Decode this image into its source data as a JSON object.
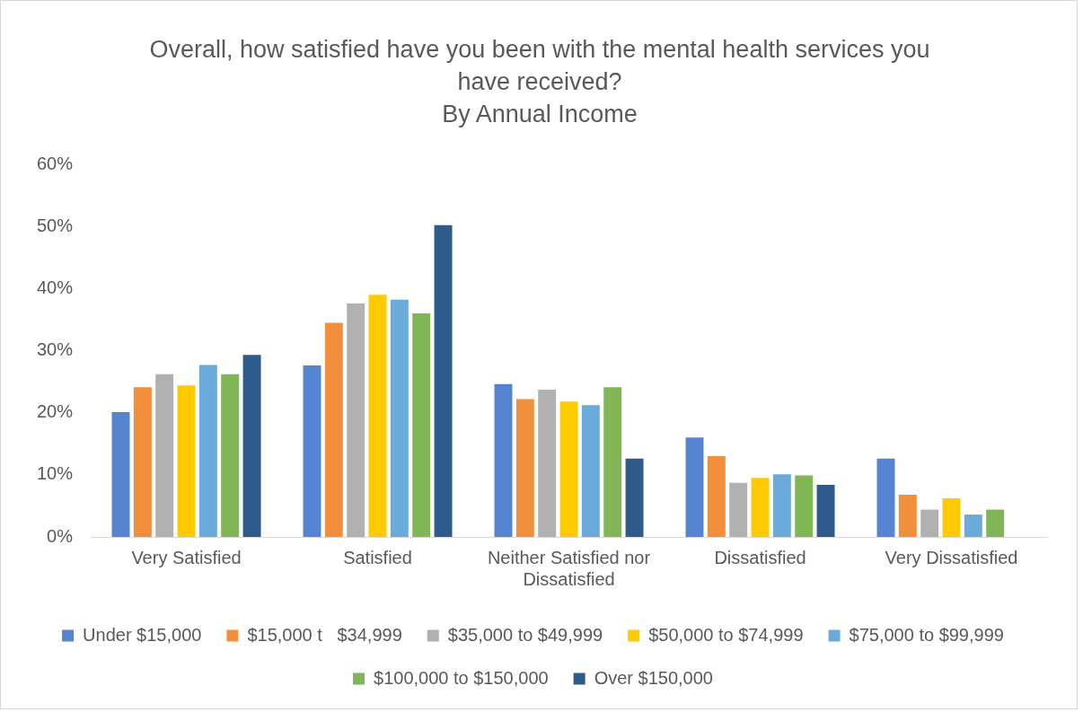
{
  "chart_data": {
    "type": "bar",
    "title": "Overall, how satisfied have you been with the mental health services you have received?",
    "subtitle": "By Annual Income",
    "categories": [
      "Very Satisfied",
      "Satisfied",
      "Neither Satisfied nor Dissatisfied",
      "Dissatisfied",
      "Very Dissatisfied"
    ],
    "series": [
      {
        "name": "Under $15,000",
        "color": "#5585d0",
        "values": [
          20.1,
          27.6,
          24.6,
          16.0,
          12.6
        ]
      },
      {
        "name": "$15,000 t   $34,999",
        "color": "#f28f3c",
        "values": [
          24.1,
          34.5,
          22.2,
          13.0,
          6.8
        ]
      },
      {
        "name": "$35,000 to $49,999",
        "color": "#b1b1b1",
        "values": [
          26.2,
          37.6,
          23.7,
          8.7,
          4.4
        ]
      },
      {
        "name": "$50,000 to $74,999",
        "color": "#ffca00",
        "values": [
          24.4,
          39.0,
          21.8,
          9.5,
          6.2
        ]
      },
      {
        "name": "$75,000 to $99,999",
        "color": "#6babdc",
        "values": [
          27.7,
          38.2,
          21.2,
          10.1,
          3.6
        ]
      },
      {
        "name": "$100,000 to $150,000",
        "color": "#80b656",
        "values": [
          26.2,
          36.0,
          24.1,
          9.9,
          4.4
        ]
      },
      {
        "name": "Over $150,000",
        "color": "#2f5a8c",
        "values": [
          29.3,
          50.2,
          12.6,
          8.4,
          0
        ]
      }
    ],
    "ylim": [
      0,
      60
    ],
    "yticks": [
      {
        "value": 0,
        "label": "0%"
      },
      {
        "value": 10,
        "label": "10%"
      },
      {
        "value": 20,
        "label": "20%"
      },
      {
        "value": 30,
        "label": "30%"
      },
      {
        "value": 40,
        "label": "40%"
      },
      {
        "value": 50,
        "label": "50%"
      },
      {
        "value": 60,
        "label": "60%"
      }
    ],
    "grid": false,
    "legend": "bottom"
  }
}
